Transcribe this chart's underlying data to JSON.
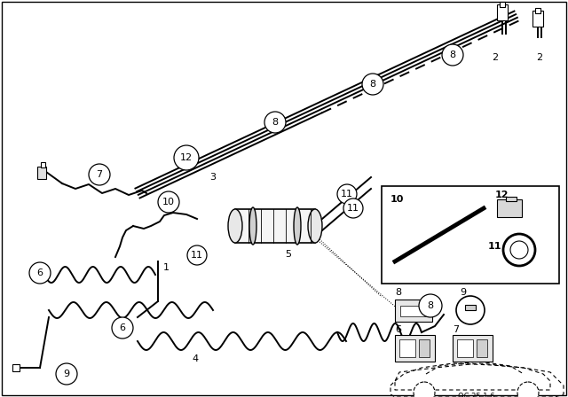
{
  "bg_color": "#ffffff",
  "line_color": "#000000",
  "fig_width": 6.4,
  "fig_height": 4.48,
  "dpi": 100
}
